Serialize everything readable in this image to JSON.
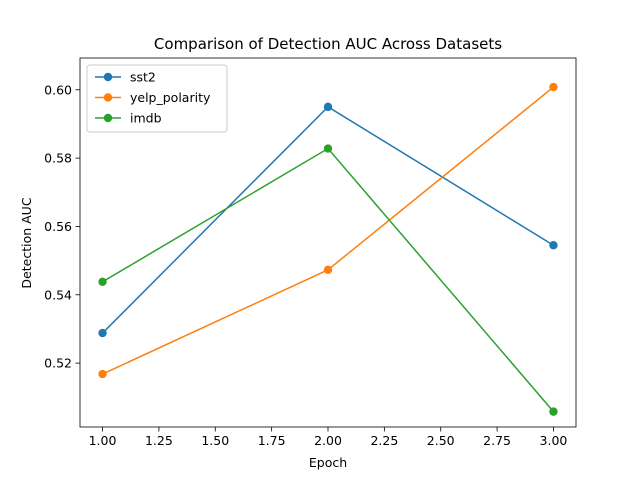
{
  "chart_data": {
    "type": "line",
    "title": "Comparison of Detection AUC Across Datasets",
    "xlabel": "Epoch",
    "ylabel": "Detection AUC",
    "x": [
      1.0,
      2.0,
      3.0
    ],
    "xlim": [
      0.9,
      3.1
    ],
    "ylim": [
      0.5013,
      0.6093
    ],
    "xticks": [
      "1.00",
      "1.25",
      "1.50",
      "1.75",
      "2.00",
      "2.25",
      "2.50",
      "2.75",
      "3.00"
    ],
    "xtick_values": [
      1.0,
      1.25,
      1.5,
      1.75,
      2.0,
      2.25,
      2.5,
      2.75,
      3.0
    ],
    "yticks": [
      "0.52",
      "0.54",
      "0.56",
      "0.58",
      "0.60"
    ],
    "ytick_values": [
      0.52,
      0.54,
      0.56,
      0.58,
      0.6
    ],
    "grid": false,
    "legend_position": "upper-left",
    "series": [
      {
        "name": "sst2",
        "color": "#1f77b4",
        "marker": "circle",
        "values": [
          0.5288,
          0.595,
          0.5545
        ]
      },
      {
        "name": "yelp_polarity",
        "color": "#ff7f0e",
        "marker": "circle",
        "values": [
          0.5168,
          0.5473,
          0.6008
        ]
      },
      {
        "name": "imdb",
        "color": "#2ca02c",
        "marker": "circle",
        "values": [
          0.5438,
          0.5828,
          0.5058
        ]
      }
    ]
  }
}
